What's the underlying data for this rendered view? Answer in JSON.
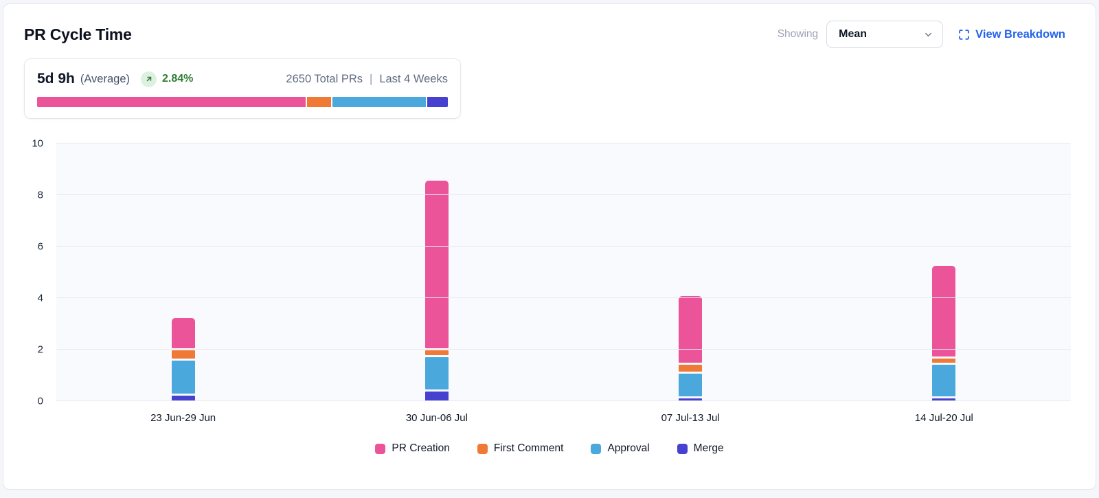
{
  "header": {
    "title": "PR Cycle Time",
    "showing_label": "Showing",
    "selected_metric": "Mean",
    "view_breakdown_label": "View Breakdown"
  },
  "summary": {
    "average_value": "5d 9h",
    "average_label": "(Average)",
    "trend_percent": "2.84%",
    "trend_direction": "up",
    "total_prs": "2650 Total PRs",
    "separator": "|",
    "period": "Last 4 Weeks",
    "distribution_percent": [
      {
        "name": "PR Creation",
        "percent": 66.0
      },
      {
        "name": "First Comment",
        "percent": 5.9
      },
      {
        "name": "Approval",
        "percent": 23.0
      },
      {
        "name": "Merge",
        "percent": 5.1
      }
    ]
  },
  "colors": {
    "pr_creation": "#EC5499",
    "first_comment": "#EE7A36",
    "approval": "#4AA8DC",
    "merge": "#4741D0",
    "trend_green": "#2E7D32",
    "trend_badge_bg": "#DEF0E0",
    "link_blue": "#2563EB"
  },
  "chart_data": {
    "type": "bar",
    "subtype": "stacked-vertical",
    "title": "PR Cycle Time",
    "categories": [
      "23 Jun-29 Jun",
      "30 Jun-06 Jul",
      "07 Jul-13 Jul",
      "14 Jul-20 Jul"
    ],
    "series": [
      {
        "name": "PR Creation",
        "color": "#EC5499",
        "values": [
          1.25,
          6.6,
          2.65,
          3.6
        ]
      },
      {
        "name": "First Comment",
        "color": "#EE7A36",
        "values": [
          0.4,
          0.25,
          0.35,
          0.25
        ]
      },
      {
        "name": "Approval",
        "color": "#4AA8DC",
        "values": [
          1.35,
          1.35,
          0.95,
          1.3
        ]
      },
      {
        "name": "Merge",
        "color": "#4741D0",
        "values": [
          0.3,
          0.45,
          0.2,
          0.15
        ]
      }
    ],
    "stack_order_bottom_to_top": [
      "Merge",
      "Approval",
      "First Comment",
      "PR Creation"
    ],
    "stack_totals": [
      3.3,
      8.65,
      4.15,
      5.3
    ],
    "xlabel": "",
    "ylabel": "",
    "ylim": [
      0,
      10
    ],
    "yticks": [
      0,
      2,
      4,
      6,
      8,
      10
    ],
    "grid": true,
    "legend_position": "bottom",
    "legend": [
      "PR Creation",
      "First Comment",
      "Approval",
      "Merge"
    ]
  }
}
